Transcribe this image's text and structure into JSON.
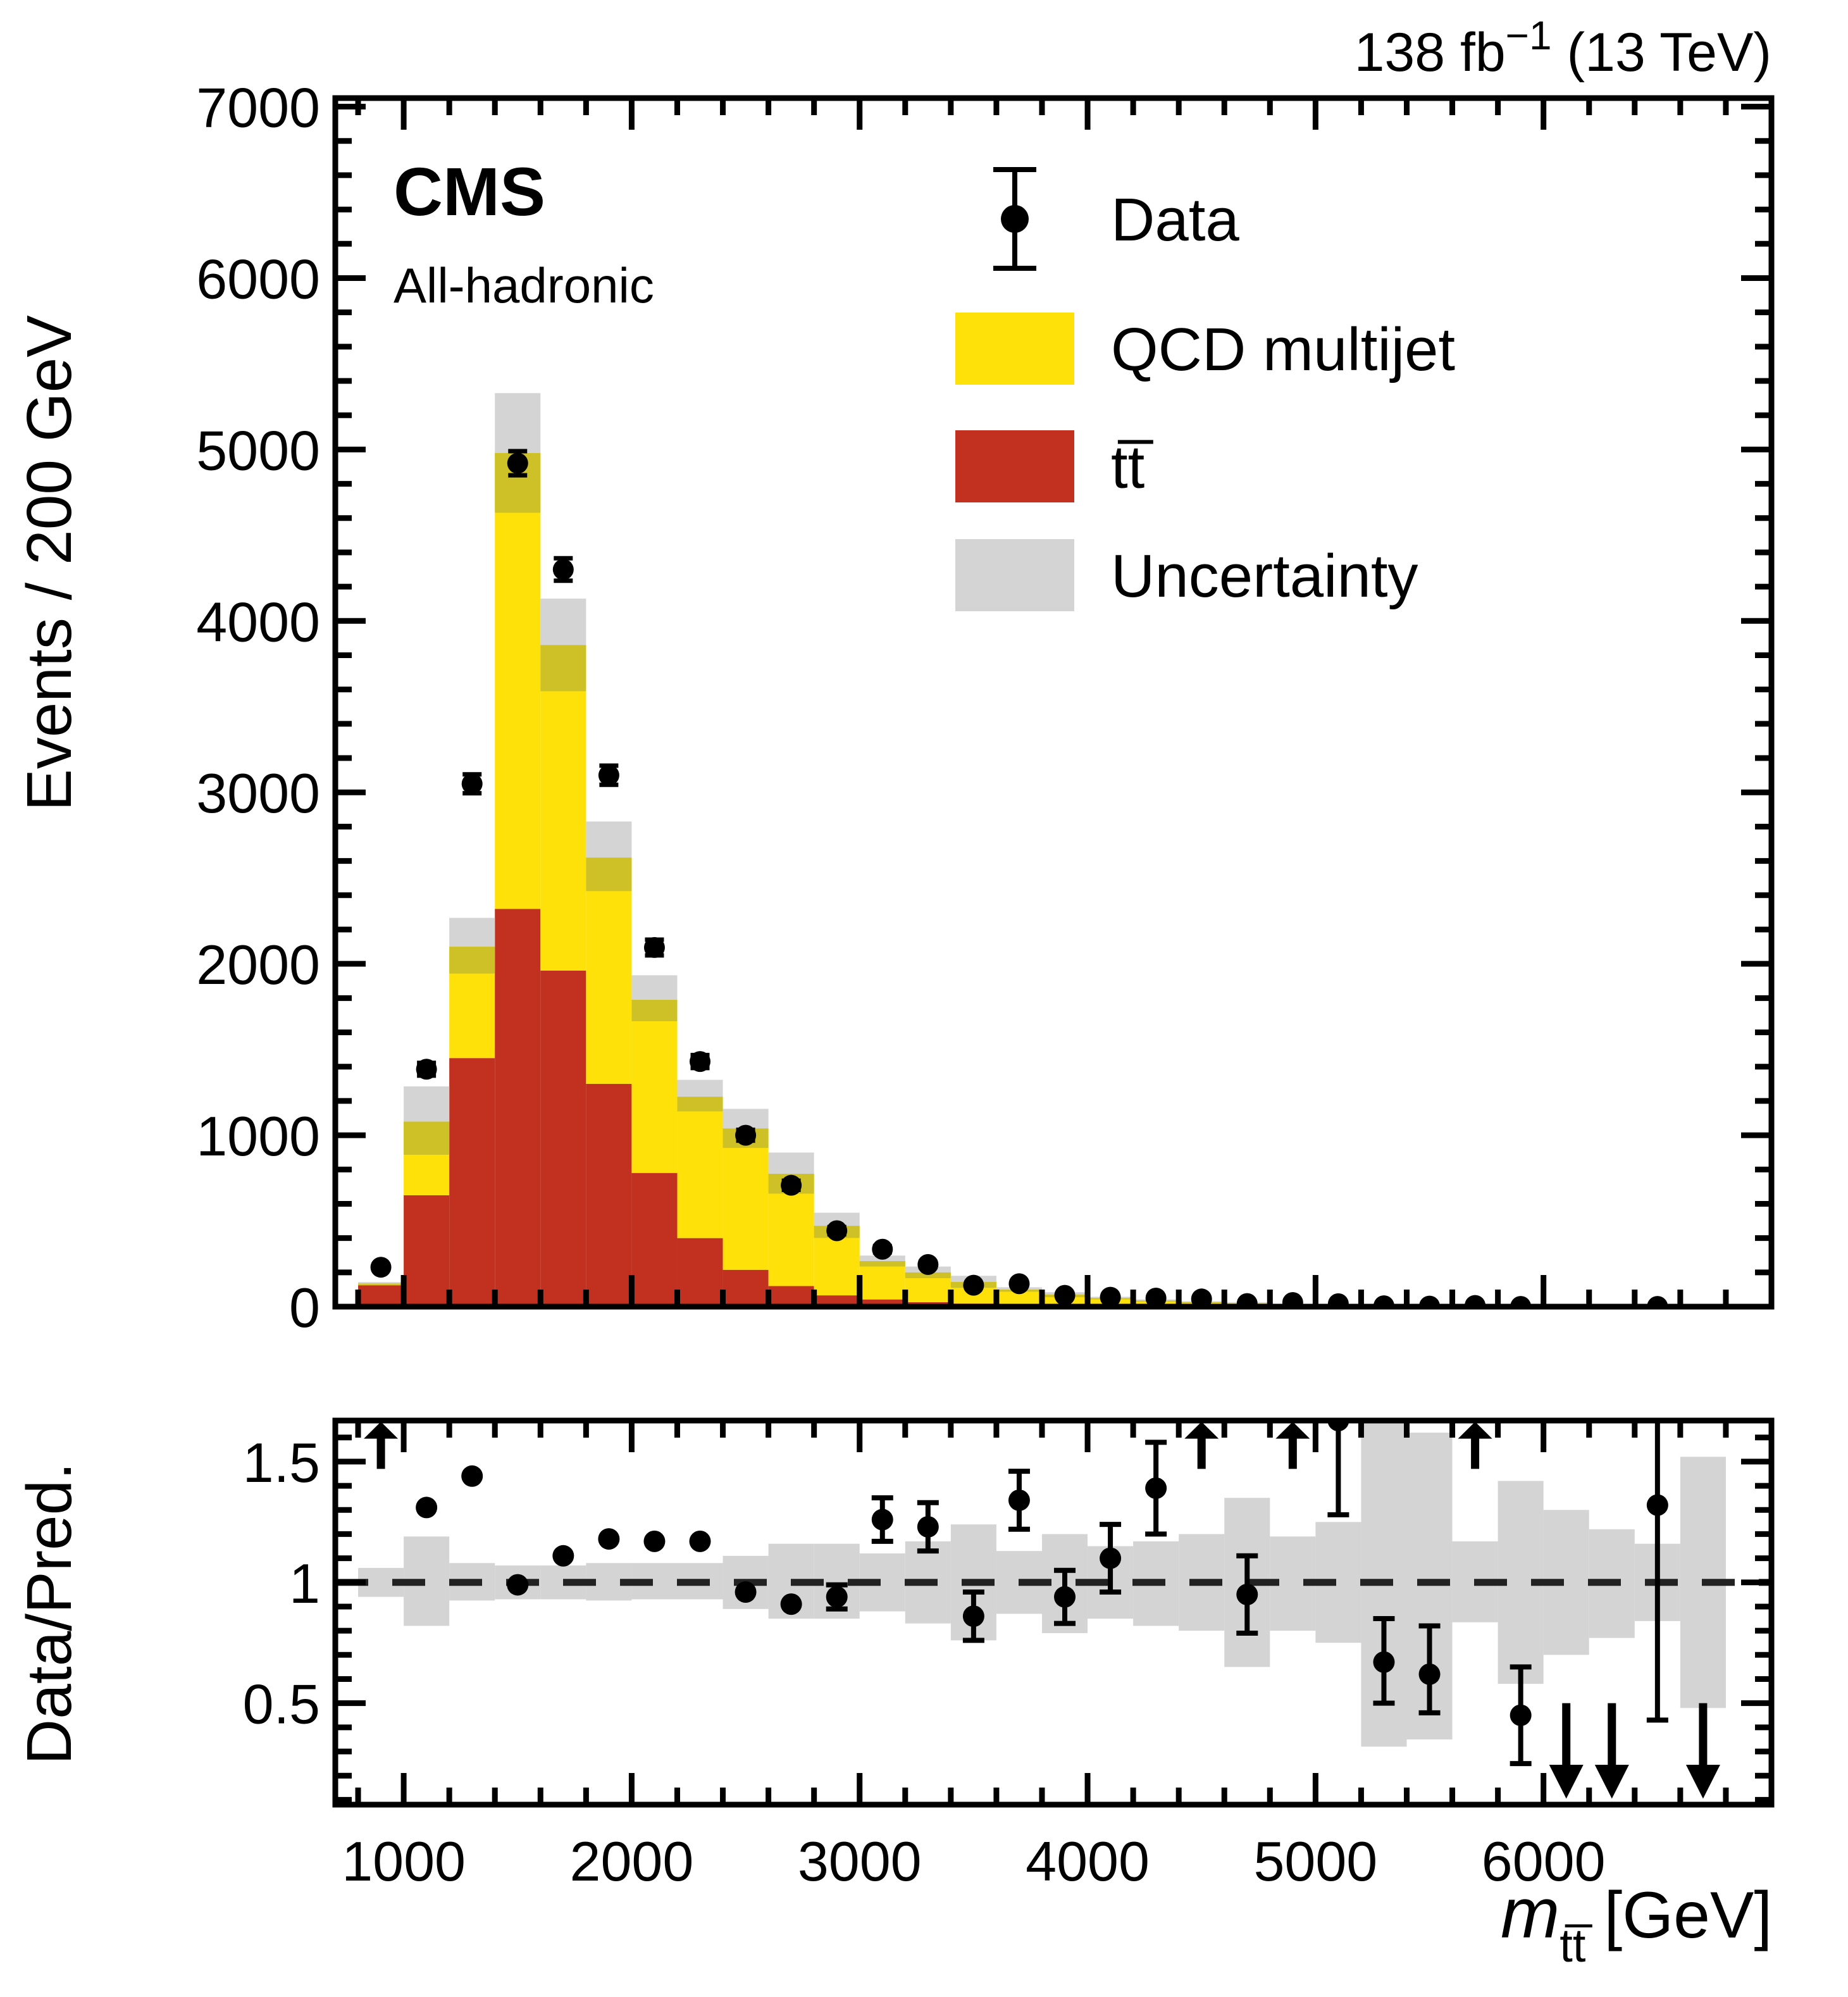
{
  "lumi": {
    "pre": "138 fb",
    "sup": "−1",
    "post": " (13 TeV)"
  },
  "cms": "CMS",
  "channel": "All-hadronic",
  "legend": {
    "data": "Data",
    "qcd": "QCD multijet",
    "ttbar": "tt̅",
    "uncertainty": "Uncertainty"
  },
  "axis_titles": {
    "main_y": "Events / 200 GeV",
    "ratio_y": "Data/Pred.",
    "x_symbol": "m",
    "x_subscript": "tt̅",
    "x_unit": " [GeV]"
  },
  "colors": {
    "qcd": "#FFE10A",
    "ttbar": "#C2301F",
    "uncertainty": "#D4D4D4",
    "uncertainty_on_qcd": "#CDC127",
    "marker": "#000000"
  },
  "chart_data": {
    "type": "bar",
    "subtype": "stacked-histogram-with-ratio",
    "title": "CMS All-hadronic m_tt spectrum",
    "xlabel": "m_tt [GeV]",
    "ylabel_main": "Events / 200 GeV",
    "ylabel_ratio": "Data/Pred.",
    "bin_width": 200,
    "x_range": [
      700,
      7000
    ],
    "main_y_range": [
      0,
      7050
    ],
    "ratio_y_range": [
      0.08,
      1.67
    ],
    "x_ticks": [
      1000,
      2000,
      3000,
      4000,
      5000,
      6000
    ],
    "main_y_ticks": [
      0,
      1000,
      2000,
      3000,
      4000,
      5000,
      6000,
      7000
    ],
    "ratio_y_ticks": [
      0.5,
      1,
      1.5
    ],
    "centers": [
      900,
      1100,
      1300,
      1500,
      1700,
      1900,
      2100,
      2300,
      2500,
      2700,
      2900,
      3100,
      3300,
      3500,
      3700,
      3900,
      4100,
      4300,
      4500,
      4700,
      4900,
      5100,
      5300,
      5500,
      5700,
      5900,
      6100,
      6300,
      6500,
      6700,
      6900
    ],
    "series": [
      {
        "name": "ttbar",
        "values": [
          125,
          650,
          1450,
          2320,
          1960,
          1300,
          780,
          400,
          215,
          120,
          66,
          42,
          26,
          18,
          12,
          9,
          7,
          5,
          4,
          3,
          2,
          1.5,
          1,
          0.8,
          0.5,
          0.4,
          0.3,
          0.2,
          0.15,
          0.1,
          0.1
        ]
      },
      {
        "name": "qcd",
        "values": [
          10,
          430,
          650,
          2660,
          1900,
          1320,
          1010,
          825,
          825,
          655,
          406,
          224,
          174,
          127,
          88,
          61,
          43,
          31,
          22,
          16,
          12,
          8.5,
          6.3,
          4.7,
          3.5,
          2.5,
          1.9,
          1.4,
          0.95,
          0.7,
          0.5
        ]
      }
    ],
    "band_lo": [
      127,
      886,
      1943,
      4631,
      3590,
      2424,
      1665,
      1139,
      926,
      659,
      401,
      234,
      166,
      110,
      87,
      55,
      42.5,
      29.5,
      20.8,
      12.4,
      11.2,
      7.5,
      2.3,
      1.9,
      3.3,
      1.7,
      1.5,
      1.2,
      0.9,
      0.4,
      0.54
    ],
    "band_hi": [
      143,
      1285,
      2268,
      5329,
      4130,
      2830,
      1933,
      1323,
      1154,
      899,
      548,
      298,
      234,
      180,
      113,
      84,
      57.5,
      42,
      31.2,
      25.7,
      16.7,
      12.5,
      12.4,
      8.9,
      4.7,
      4.1,
      2.9,
      2.0,
      1.3,
      1.2,
      0.66
    ],
    "data": [
      230,
      1385,
      3050,
      4920,
      4300,
      3100,
      2095,
      1430,
      1000,
      708,
      443,
      335,
      246,
      125,
      134,
      66,
      55,
      50,
      45,
      18,
      24,
      17,
      4.9,
      3.4,
      7,
      1.3,
      0,
      0,
      1.45,
      0,
      0
    ],
    "ratio": {
      "values": [
        null,
        1.31,
        1.44,
        0.99,
        1.11,
        1.18,
        1.17,
        1.17,
        0.96,
        0.91,
        0.94,
        1.26,
        1.23,
        0.86,
        1.34,
        0.94,
        1.1,
        1.39,
        null,
        0.95,
        null,
        1.67,
        0.67,
        0.62,
        null,
        0.45,
        null,
        null,
        1.32,
        null,
        null
      ],
      "err_lo": [
        0,
        0.03,
        0.03,
        0.02,
        0.02,
        0.025,
        0.03,
        0.035,
        0.035,
        0.04,
        0.05,
        0.09,
        0.1,
        0.1,
        0.12,
        0.11,
        0.14,
        0.19,
        0,
        0.16,
        0,
        0.39,
        0.17,
        0.16,
        0,
        0.2,
        0,
        0,
        0.89,
        0,
        0
      ],
      "err_hi": [
        0,
        0.03,
        0.03,
        0.02,
        0.02,
        0.025,
        0.03,
        0.035,
        0.035,
        0.04,
        0.05,
        0.09,
        0.1,
        0.1,
        0.12,
        0.11,
        0.14,
        0.19,
        0,
        0.16,
        0,
        0.3,
        0.18,
        0.2,
        0,
        0.2,
        0,
        0,
        0.6,
        0,
        0
      ],
      "band_lo": [
        0.94,
        0.82,
        0.925,
        0.93,
        0.93,
        0.925,
        0.93,
        0.93,
        0.89,
        0.85,
        0.85,
        0.88,
        0.83,
        0.76,
        0.87,
        0.79,
        0.85,
        0.82,
        0.8,
        0.65,
        0.8,
        0.75,
        0.32,
        0.35,
        0.835,
        0.58,
        0.7,
        0.77,
        0.84,
        0.48,
        null
      ],
      "band_hi": [
        1.06,
        1.19,
        1.08,
        1.07,
        1.07,
        1.08,
        1.08,
        1.08,
        1.11,
        1.16,
        1.16,
        1.12,
        1.17,
        1.24,
        1.13,
        1.2,
        1.15,
        1.17,
        1.2,
        1.35,
        1.19,
        1.25,
        1.7,
        1.62,
        1.17,
        1.42,
        1.3,
        1.22,
        1.16,
        1.52,
        null
      ],
      "up_arrows": [
        900,
        4500,
        4900,
        5700
      ],
      "down_arrows": [
        6100,
        6300,
        6700
      ],
      "reference_line": 1
    }
  }
}
